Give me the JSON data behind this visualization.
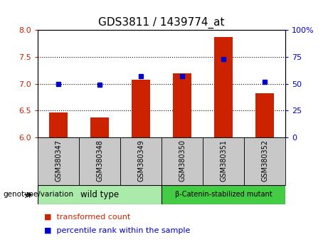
{
  "title": "GDS3811 / 1439774_at",
  "samples": [
    "GSM380347",
    "GSM380348",
    "GSM380349",
    "GSM380350",
    "GSM380351",
    "GSM380352"
  ],
  "transformed_counts": [
    6.47,
    6.37,
    7.08,
    7.2,
    7.87,
    6.82
  ],
  "percentile_ranks": [
    50,
    49,
    57,
    57,
    73,
    52
  ],
  "ylim_left": [
    6.0,
    8.0
  ],
  "ylim_right": [
    0,
    100
  ],
  "yticks_left": [
    6.0,
    6.5,
    7.0,
    7.5,
    8.0
  ],
  "yticks_right": [
    0,
    25,
    50,
    75,
    100
  ],
  "bar_color": "#cc2200",
  "dot_color": "#0000cc",
  "bg_plot": "#ffffff",
  "xtick_bg_color": "#c8c8c8",
  "genotype_label": "genotype/variation",
  "groups": [
    {
      "label": "wild type",
      "indices": [
        0,
        1,
        2
      ],
      "color": "#aaeaaa"
    },
    {
      "label": "β-Catenin-stabilized mutant",
      "indices": [
        3,
        4,
        5
      ],
      "color": "#44cc44"
    }
  ],
  "legend_items": [
    {
      "label": "transformed count",
      "color": "#cc2200"
    },
    {
      "label": "percentile rank within the sample",
      "color": "#0000cc"
    }
  ],
  "left_tick_color": "#cc2200",
  "right_tick_color": "#0000cc",
  "hgrid_values": [
    6.5,
    7.0,
    7.5
  ],
  "title_fontsize": 11,
  "tick_fontsize": 8,
  "legend_fontsize": 8
}
